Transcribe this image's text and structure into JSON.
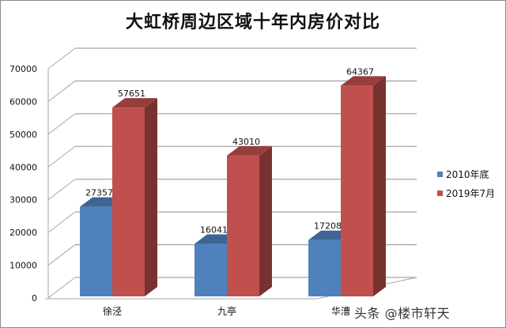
{
  "chart_data": {
    "type": "bar",
    "style": "3d-clustered-column",
    "title": "大虹桥周边区域十年内房价对比",
    "xlabel": "",
    "ylabel": "",
    "categories": [
      "徐泾",
      "九亭",
      "华漕"
    ],
    "series": [
      {
        "name": "2010年底",
        "color": "#4F81BD",
        "values": [
          27357,
          16041,
          17208
        ]
      },
      {
        "name": "2019年7月",
        "color": "#C0504D",
        "values": [
          57651,
          43010,
          64367
        ]
      }
    ],
    "ylim": [
      0,
      70000
    ],
    "yticks": [
      0,
      10000,
      20000,
      30000,
      40000,
      50000,
      60000,
      70000
    ],
    "grid": true,
    "legend_position": "right",
    "data_labels": true
  },
  "chart": {
    "title": "大虹桥周边区域十年内房价对比",
    "legend": [
      {
        "label": "2010年底",
        "color": "#4F81BD"
      },
      {
        "label": "2019年7月",
        "color": "#C0504D"
      }
    ]
  },
  "watermark": "头条 @楼市轩天"
}
